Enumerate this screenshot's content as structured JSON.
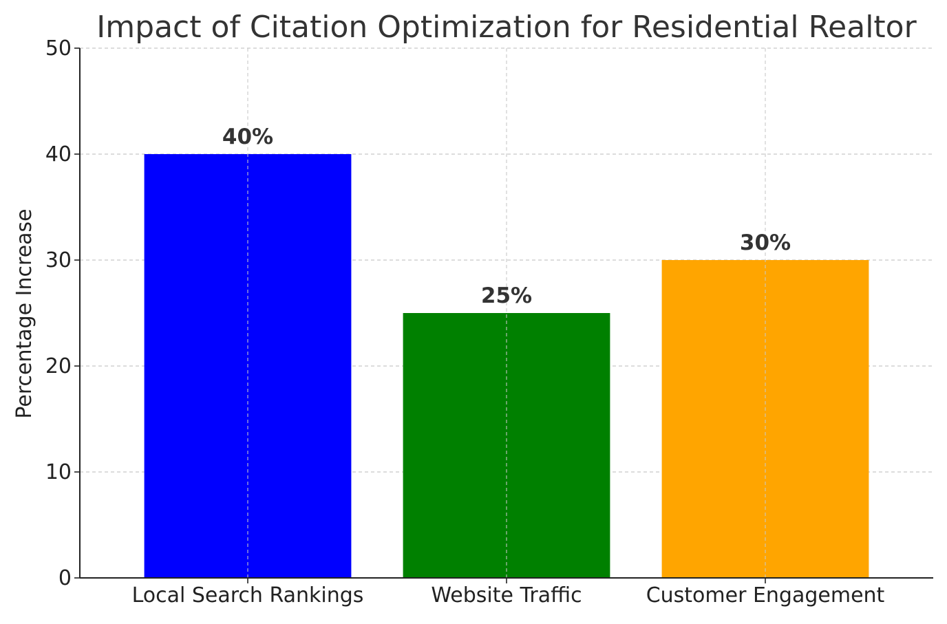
{
  "chart_data": {
    "type": "bar",
    "title": "Impact of Citation Optimization for Residential Realtor",
    "xlabel": "",
    "ylabel": "Percentage Increase",
    "categories": [
      "Local Search Rankings",
      "Website Traffic",
      "Customer Engagement"
    ],
    "values": [
      40,
      25,
      30
    ],
    "value_labels": [
      "40%",
      "25%",
      "30%"
    ],
    "colors": [
      "#0000ff",
      "#008000",
      "#ffa500"
    ],
    "ylim": [
      0,
      50
    ],
    "yticks": [
      0,
      10,
      20,
      30,
      40,
      50
    ],
    "ytick_labels": [
      "0",
      "10",
      "20",
      "30",
      "40",
      "50"
    ],
    "grid": true,
    "grid_style": "dashed"
  }
}
